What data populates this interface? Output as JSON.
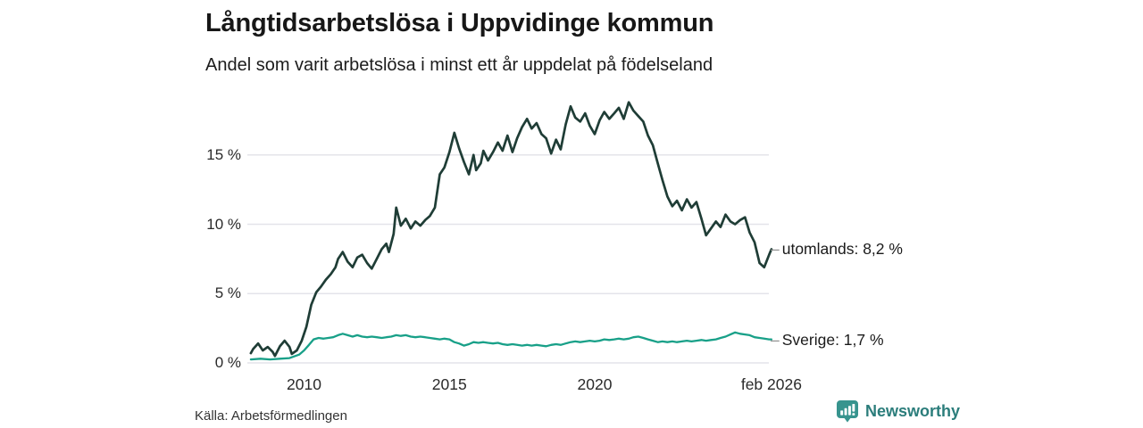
{
  "header": {
    "title": "Långtidsarbetslösa i Uppvidinge kommun",
    "subtitle": "Andel som varit arbetslösa i minst ett år uppdelat på födelseland"
  },
  "footer": {
    "source": "Källa: Arbetsförmedlingen",
    "brand": "Newsworthy"
  },
  "colors": {
    "utomlands_line": "#1f3d36",
    "sverige_line": "#18a088",
    "gridline": "#e4e4ea",
    "brand_teal": "#2b7d7b",
    "brand_icon_teal": "#37948e",
    "annotation_dash": "#8f8f8f"
  },
  "chart_data": {
    "type": "line",
    "title": "Långtidsarbetslösa i Uppvidinge kommun",
    "subtitle": "Andel som varit arbetslösa i minst ett år uppdelat på födelseland",
    "unit": "%",
    "grid": "horizontal",
    "legend_position": "end-of-line-annotations",
    "annotation_dash": "–",
    "xlim": [
      2008.17,
      2026.08
    ],
    "ylim": [
      0,
      19
    ],
    "yticks": [
      {
        "value": 0,
        "label": "0 %"
      },
      {
        "value": 5,
        "label": "5 %"
      },
      {
        "value": 10,
        "label": "10 %"
      },
      {
        "value": 15,
        "label": "15 %"
      }
    ],
    "xticks": [
      {
        "year": 2010,
        "label": "2010"
      },
      {
        "year": 2015,
        "label": "2015"
      },
      {
        "year": 2020,
        "label": "2020"
      },
      {
        "year": 2026.08,
        "label": "feb 2026"
      }
    ],
    "series": [
      {
        "name": "utomlands",
        "color": "#1f3d36",
        "end_label": "utomlands: 8,2 %",
        "end_value": 8.2,
        "points": [
          [
            2008.17,
            0.7
          ],
          [
            2008.25,
            1.0
          ],
          [
            2008.42,
            1.4
          ],
          [
            2008.58,
            0.9
          ],
          [
            2008.75,
            1.15
          ],
          [
            2008.92,
            0.8
          ],
          [
            2009.0,
            0.5
          ],
          [
            2009.17,
            1.2
          ],
          [
            2009.33,
            1.6
          ],
          [
            2009.5,
            1.15
          ],
          [
            2009.58,
            0.65
          ],
          [
            2009.75,
            0.9
          ],
          [
            2009.92,
            1.6
          ],
          [
            2010.08,
            2.6
          ],
          [
            2010.25,
            4.2
          ],
          [
            2010.42,
            5.1
          ],
          [
            2010.58,
            5.5
          ],
          [
            2010.75,
            6.0
          ],
          [
            2010.92,
            6.4
          ],
          [
            2011.08,
            6.9
          ],
          [
            2011.17,
            7.5
          ],
          [
            2011.33,
            8.0
          ],
          [
            2011.5,
            7.3
          ],
          [
            2011.67,
            6.9
          ],
          [
            2011.83,
            7.6
          ],
          [
            2012.0,
            7.8
          ],
          [
            2012.17,
            7.2
          ],
          [
            2012.33,
            6.8
          ],
          [
            2012.5,
            7.5
          ],
          [
            2012.67,
            8.2
          ],
          [
            2012.83,
            8.6
          ],
          [
            2012.92,
            8.0
          ],
          [
            2013.08,
            9.3
          ],
          [
            2013.17,
            11.2
          ],
          [
            2013.33,
            9.9
          ],
          [
            2013.5,
            10.4
          ],
          [
            2013.67,
            9.7
          ],
          [
            2013.83,
            10.2
          ],
          [
            2014.0,
            9.9
          ],
          [
            2014.17,
            10.3
          ],
          [
            2014.33,
            10.6
          ],
          [
            2014.5,
            11.2
          ],
          [
            2014.67,
            13.6
          ],
          [
            2014.83,
            14.1
          ],
          [
            2015.0,
            15.2
          ],
          [
            2015.17,
            16.6
          ],
          [
            2015.33,
            15.5
          ],
          [
            2015.5,
            14.5
          ],
          [
            2015.67,
            13.6
          ],
          [
            2015.83,
            15.0
          ],
          [
            2015.92,
            13.9
          ],
          [
            2016.08,
            14.4
          ],
          [
            2016.17,
            15.3
          ],
          [
            2016.33,
            14.6
          ],
          [
            2016.5,
            15.2
          ],
          [
            2016.67,
            15.9
          ],
          [
            2016.83,
            15.3
          ],
          [
            2017.0,
            16.4
          ],
          [
            2017.17,
            15.2
          ],
          [
            2017.33,
            16.2
          ],
          [
            2017.5,
            17.0
          ],
          [
            2017.67,
            17.6
          ],
          [
            2017.83,
            16.9
          ],
          [
            2018.0,
            17.3
          ],
          [
            2018.17,
            16.5
          ],
          [
            2018.33,
            16.2
          ],
          [
            2018.5,
            15.1
          ],
          [
            2018.67,
            16.1
          ],
          [
            2018.83,
            15.4
          ],
          [
            2019.0,
            17.2
          ],
          [
            2019.17,
            18.5
          ],
          [
            2019.33,
            17.7
          ],
          [
            2019.5,
            17.4
          ],
          [
            2019.67,
            18.0
          ],
          [
            2019.83,
            17.1
          ],
          [
            2020.0,
            16.5
          ],
          [
            2020.17,
            17.5
          ],
          [
            2020.33,
            18.1
          ],
          [
            2020.5,
            17.6
          ],
          [
            2020.67,
            18.0
          ],
          [
            2020.83,
            18.4
          ],
          [
            2021.0,
            17.6
          ],
          [
            2021.17,
            18.8
          ],
          [
            2021.33,
            18.2
          ],
          [
            2021.5,
            17.8
          ],
          [
            2021.67,
            17.4
          ],
          [
            2021.83,
            16.4
          ],
          [
            2022.0,
            15.7
          ],
          [
            2022.17,
            14.4
          ],
          [
            2022.33,
            13.2
          ],
          [
            2022.5,
            12.0
          ],
          [
            2022.67,
            11.3
          ],
          [
            2022.83,
            11.7
          ],
          [
            2023.0,
            11.0
          ],
          [
            2023.17,
            11.8
          ],
          [
            2023.33,
            11.2
          ],
          [
            2023.5,
            11.6
          ],
          [
            2023.67,
            10.4
          ],
          [
            2023.83,
            9.2
          ],
          [
            2024.0,
            9.7
          ],
          [
            2024.17,
            10.2
          ],
          [
            2024.33,
            9.8
          ],
          [
            2024.5,
            10.7
          ],
          [
            2024.67,
            10.2
          ],
          [
            2024.83,
            10.0
          ],
          [
            2025.0,
            10.3
          ],
          [
            2025.17,
            10.5
          ],
          [
            2025.33,
            9.4
          ],
          [
            2025.5,
            8.7
          ],
          [
            2025.67,
            7.2
          ],
          [
            2025.83,
            6.9
          ],
          [
            2026.0,
            7.8
          ],
          [
            2026.08,
            8.2
          ]
        ]
      },
      {
        "name": "Sverige",
        "color": "#18a088",
        "end_label": "Sverige: 1,7 %",
        "end_value": 1.7,
        "points": [
          [
            2008.17,
            0.25
          ],
          [
            2008.5,
            0.3
          ],
          [
            2008.83,
            0.25
          ],
          [
            2009.17,
            0.3
          ],
          [
            2009.5,
            0.35
          ],
          [
            2009.83,
            0.6
          ],
          [
            2010.0,
            0.9
          ],
          [
            2010.17,
            1.3
          ],
          [
            2010.33,
            1.7
          ],
          [
            2010.5,
            1.8
          ],
          [
            2010.67,
            1.75
          ],
          [
            2010.83,
            1.8
          ],
          [
            2011.0,
            1.85
          ],
          [
            2011.17,
            2.0
          ],
          [
            2011.33,
            2.1
          ],
          [
            2011.5,
            2.0
          ],
          [
            2011.67,
            1.9
          ],
          [
            2011.83,
            2.0
          ],
          [
            2012.0,
            1.9
          ],
          [
            2012.17,
            1.85
          ],
          [
            2012.33,
            1.9
          ],
          [
            2012.5,
            1.85
          ],
          [
            2012.67,
            1.8
          ],
          [
            2012.83,
            1.85
          ],
          [
            2013.0,
            1.9
          ],
          [
            2013.17,
            2.0
          ],
          [
            2013.33,
            1.95
          ],
          [
            2013.5,
            2.0
          ],
          [
            2013.67,
            1.9
          ],
          [
            2013.83,
            1.85
          ],
          [
            2014.0,
            1.9
          ],
          [
            2014.17,
            1.85
          ],
          [
            2014.33,
            1.8
          ],
          [
            2014.5,
            1.75
          ],
          [
            2014.67,
            1.7
          ],
          [
            2014.83,
            1.75
          ],
          [
            2015.0,
            1.7
          ],
          [
            2015.17,
            1.5
          ],
          [
            2015.33,
            1.4
          ],
          [
            2015.5,
            1.25
          ],
          [
            2015.67,
            1.35
          ],
          [
            2015.83,
            1.5
          ],
          [
            2016.0,
            1.45
          ],
          [
            2016.17,
            1.5
          ],
          [
            2016.33,
            1.45
          ],
          [
            2016.5,
            1.4
          ],
          [
            2016.67,
            1.45
          ],
          [
            2016.83,
            1.35
          ],
          [
            2017.0,
            1.3
          ],
          [
            2017.17,
            1.35
          ],
          [
            2017.33,
            1.3
          ],
          [
            2017.5,
            1.25
          ],
          [
            2017.67,
            1.3
          ],
          [
            2017.83,
            1.25
          ],
          [
            2018.0,
            1.3
          ],
          [
            2018.17,
            1.25
          ],
          [
            2018.33,
            1.2
          ],
          [
            2018.5,
            1.3
          ],
          [
            2018.67,
            1.35
          ],
          [
            2018.83,
            1.3
          ],
          [
            2019.0,
            1.4
          ],
          [
            2019.17,
            1.5
          ],
          [
            2019.33,
            1.55
          ],
          [
            2019.5,
            1.5
          ],
          [
            2019.67,
            1.55
          ],
          [
            2019.83,
            1.6
          ],
          [
            2020.0,
            1.55
          ],
          [
            2020.17,
            1.6
          ],
          [
            2020.33,
            1.7
          ],
          [
            2020.5,
            1.65
          ],
          [
            2020.67,
            1.7
          ],
          [
            2020.83,
            1.75
          ],
          [
            2021.0,
            1.7
          ],
          [
            2021.17,
            1.75
          ],
          [
            2021.33,
            1.85
          ],
          [
            2021.5,
            1.9
          ],
          [
            2021.67,
            1.8
          ],
          [
            2021.83,
            1.7
          ],
          [
            2022.0,
            1.6
          ],
          [
            2022.17,
            1.5
          ],
          [
            2022.33,
            1.55
          ],
          [
            2022.5,
            1.5
          ],
          [
            2022.67,
            1.55
          ],
          [
            2022.83,
            1.5
          ],
          [
            2023.0,
            1.55
          ],
          [
            2023.17,
            1.6
          ],
          [
            2023.33,
            1.55
          ],
          [
            2023.5,
            1.6
          ],
          [
            2023.67,
            1.65
          ],
          [
            2023.83,
            1.6
          ],
          [
            2024.0,
            1.65
          ],
          [
            2024.17,
            1.7
          ],
          [
            2024.33,
            1.8
          ],
          [
            2024.5,
            1.9
          ],
          [
            2024.67,
            2.05
          ],
          [
            2024.83,
            2.2
          ],
          [
            2025.0,
            2.1
          ],
          [
            2025.17,
            2.05
          ],
          [
            2025.33,
            2.0
          ],
          [
            2025.5,
            1.85
          ],
          [
            2025.67,
            1.8
          ],
          [
            2025.83,
            1.75
          ],
          [
            2026.0,
            1.7
          ],
          [
            2026.08,
            1.7
          ]
        ]
      }
    ]
  }
}
